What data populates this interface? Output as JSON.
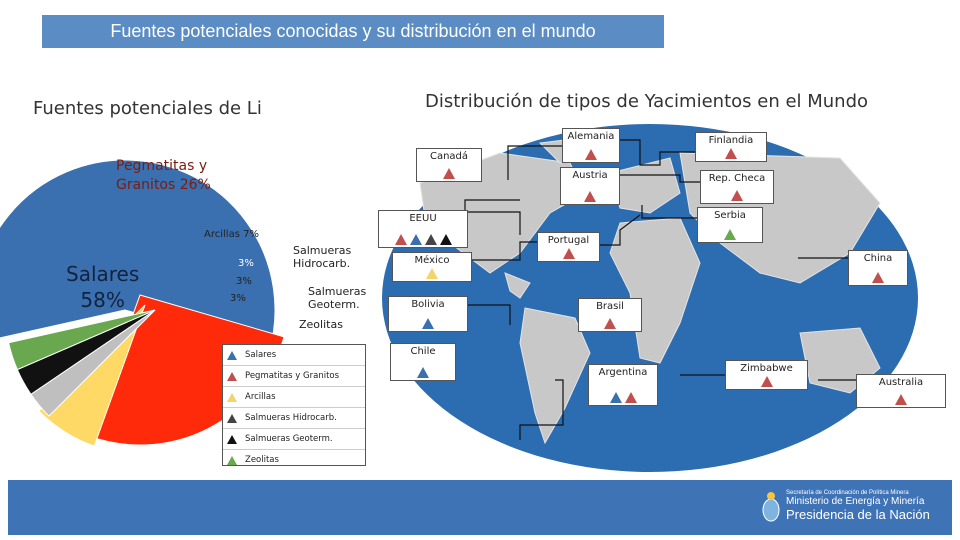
{
  "header": {
    "title": "Fuentes potenciales conocidas y su distribución en el mundo"
  },
  "pie": {
    "title": "Fuentes potenciales de Li",
    "labels": {
      "pegmatitas": "Pegmatitas y\nGranitos 26%",
      "salares": "Salares\n58%",
      "arcillas": "Arcillas 7%",
      "hidro_pct": "3%",
      "geoterm_pct": "3%",
      "zeolitas_pct": "3%",
      "hidro_name": "Salmueras\nHidrocarb.",
      "geoterm_name": "Salmueras\nGeoterm.",
      "zeolitas_name": "Zeolitas"
    },
    "colors": {
      "salares": "#3a6fb0",
      "pegmatitas": "#ff2a0a",
      "arcillas": "#ffd966",
      "hidro": "#bfbfbf",
      "geoterm": "#111111",
      "zeolitas": "#6aa84f"
    }
  },
  "chart_data": {
    "type": "pie",
    "title": "Fuentes potenciales de Li",
    "categories": [
      "Salares",
      "Pegmatitas y Granitos",
      "Arcillas",
      "Salmueras Hidrocarb.",
      "Salmueras Geoterm.",
      "Zeolitas"
    ],
    "values": [
      58,
      26,
      7,
      3,
      3,
      3
    ]
  },
  "map": {
    "title": "Distribución de tipos de Yacimientos en el Mundo",
    "countries": [
      {
        "name": "Alemania",
        "types": [
          "pegmatitas"
        ]
      },
      {
        "name": "Finlandia",
        "types": [
          "pegmatitas"
        ]
      },
      {
        "name": "Canadá",
        "types": [
          "pegmatitas"
        ]
      },
      {
        "name": "Austria",
        "types": [
          "pegmatitas"
        ]
      },
      {
        "name": "Rep. Checa",
        "types": [
          "pegmatitas"
        ]
      },
      {
        "name": "Serbia",
        "types": [
          "zeolitas"
        ]
      },
      {
        "name": "EEUU",
        "types": [
          "pegmatitas",
          "salares",
          "hidro",
          "geoterm"
        ]
      },
      {
        "name": "Portugal",
        "types": [
          "pegmatitas"
        ]
      },
      {
        "name": "México",
        "types": [
          "arcillas"
        ]
      },
      {
        "name": "China",
        "types": [
          "pegmatitas"
        ]
      },
      {
        "name": "Bolivia",
        "types": [
          "salares"
        ]
      },
      {
        "name": "Brasil",
        "types": [
          "pegmatitas"
        ]
      },
      {
        "name": "Chile",
        "types": [
          "salares"
        ]
      },
      {
        "name": "Argentina",
        "types": [
          "salares",
          "pegmatitas"
        ]
      },
      {
        "name": "Zimbabwe",
        "types": [
          "pegmatitas"
        ]
      },
      {
        "name": "Australia",
        "types": [
          "pegmatitas"
        ]
      }
    ]
  },
  "legend": [
    {
      "label": "Salares",
      "type": "salares"
    },
    {
      "label": "Pegmatitas y Granitos",
      "type": "pegmatitas"
    },
    {
      "label": "Arcillas",
      "type": "arcillas"
    },
    {
      "label": "Salmueras Hidrocarb.",
      "type": "hidro"
    },
    {
      "label": "Salmueras Geoterm.",
      "type": "geoterm"
    },
    {
      "label": "Zeolitas",
      "type": "zeolitas"
    }
  ],
  "footer": {
    "line1": "Secretaría de Coordinación de Política Minera",
    "line2": "Ministerio de Energía y Minería",
    "line3": "Presidencia de la Nación"
  }
}
